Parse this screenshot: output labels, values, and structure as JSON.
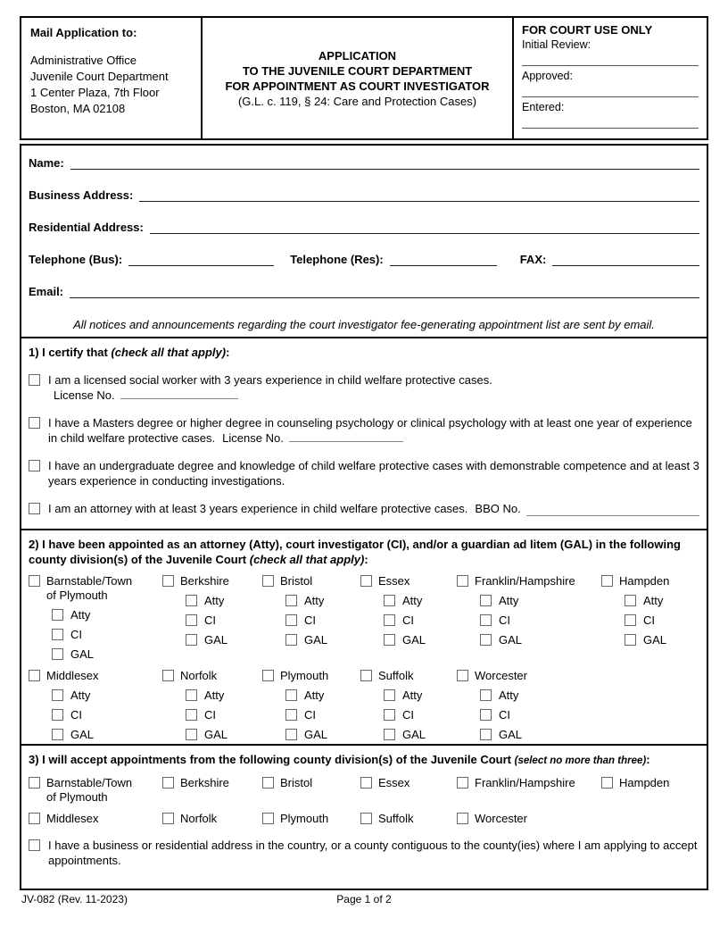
{
  "header": {
    "mail": {
      "title": "Mail Application to:",
      "lines": [
        "Administrative Office",
        "Juvenile Court Department",
        "1 Center Plaza, 7th Floor",
        "Boston, MA 02108"
      ]
    },
    "title": {
      "line1": "APPLICATION",
      "line2": "TO THE JUVENILE COURT DEPARTMENT",
      "line3": "FOR APPOINTMENT AS COURT INVESTIGATOR",
      "subtitle": "(G.L. c. 119, § 24: Care and Protection Cases)"
    },
    "court_use": {
      "title": "FOR COURT USE ONLY",
      "initial_review_label": "Initial Review:",
      "approved_label": "Approved:",
      "entered_label": "Entered:"
    }
  },
  "contact": {
    "name_label": "Name:",
    "business_label": "Business Address:",
    "residential_label": "Residential Address:",
    "phone_bus_label": "Telephone (Bus):",
    "phone_res_label": "Telephone (Res):",
    "fax_label": "FAX:",
    "email_label": "Email:",
    "notice": "All notices and announcements regarding the court investigator fee-generating appointment list are sent by email."
  },
  "section1": {
    "heading_bold": "1) I certify that ",
    "heading_italic": "(check all that apply)",
    "heading_suffix": ":",
    "items": [
      {
        "text": "I am a licensed social worker with 3 years experience in child welfare protective cases.",
        "extra_label": "License No.",
        "extra_placement": "newline",
        "slug": "social-worker"
      },
      {
        "text": "I have a Masters degree or higher degree in counseling psychology or clinical psychology with at least one year of experience in child welfare protective cases.",
        "extra_label": "License No.",
        "extra_placement": "inline",
        "slug": "masters-degree"
      },
      {
        "text": "I have an undergraduate degree and knowledge of child welfare protective cases with demonstrable competence and at least 3 years experience in conducting investigations.",
        "slug": "undergraduate-degree"
      },
      {
        "text": "I am an attorney with at least 3 years experience in child welfare protective cases.",
        "extra_label": "BBO No.",
        "extra_placement": "grow",
        "slug": "attorney"
      }
    ]
  },
  "section2": {
    "heading_bold": "2) I have been appointed as an attorney (Atty), court investigator (CI), and/or a guardian ad litem (GAL) in the following county division(s) of the Juvenile Court ",
    "heading_italic": "(check all that apply)",
    "heading_suffix": ":",
    "roles": [
      "Atty",
      "CI",
      "GAL"
    ],
    "rows": [
      [
        {
          "name": "Barnstable/Town",
          "name2": "of Plymouth"
        },
        {
          "name": "Berkshire"
        },
        {
          "name": "Bristol"
        },
        {
          "name": "Essex"
        },
        {
          "name": "Franklin/Hampshire"
        },
        {
          "name": "Hampden"
        }
      ],
      [
        {
          "name": "Middlesex"
        },
        {
          "name": "Norfolk"
        },
        {
          "name": "Plymouth"
        },
        {
          "name": "Suffolk"
        },
        {
          "name": "Worcester"
        }
      ]
    ]
  },
  "section3": {
    "heading_bold": "3) I will accept appointments from the following county division(s) of the Juvenile Court ",
    "heading_italic": "(select no more than three)",
    "heading_suffix": ":",
    "rows": [
      [
        {
          "name": "Barnstable/Town",
          "name2": "of Plymouth"
        },
        {
          "name": "Berkshire"
        },
        {
          "name": "Bristol"
        },
        {
          "name": "Essex"
        },
        {
          "name": "Franklin/Hampshire"
        },
        {
          "name": "Hampden"
        }
      ],
      [
        {
          "name": "Middlesex"
        },
        {
          "name": "Norfolk"
        },
        {
          "name": "Plymouth"
        },
        {
          "name": "Suffolk"
        },
        {
          "name": "Worcester"
        }
      ]
    ],
    "final_item": "I have a business or residential address in the country, or a county contiguous to the county(ies) where I am applying to accept appointments."
  },
  "footer": {
    "form_number": "JV-082 (Rev. 11-2023)",
    "page": "Page 1 of 2"
  }
}
